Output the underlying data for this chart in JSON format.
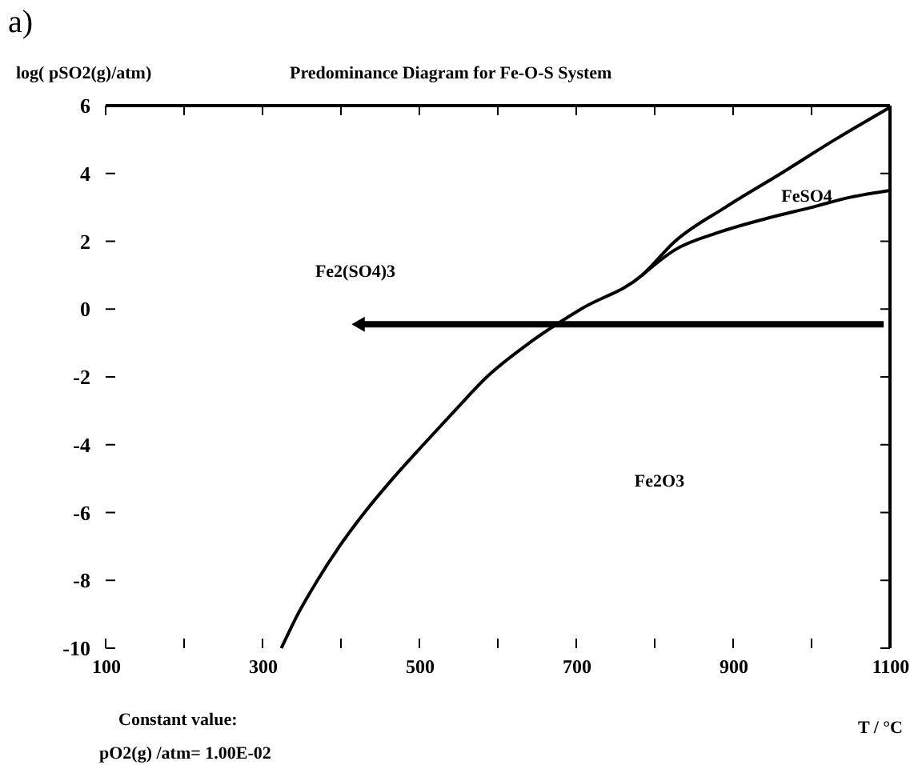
{
  "chart_data": {
    "type": "line",
    "title": "Predominance Diagram for Fe-O-S System",
    "xlabel": "T / °C",
    "ylabel": "log( pSO2(g)/atm)",
    "xlim": [
      100,
      1100
    ],
    "ylim": [
      -10,
      6
    ],
    "xticks": [
      100,
      {
        "value": 200,
        "label": null
      },
      300,
      {
        "value": 400,
        "label": null
      },
      500,
      {
        "value": 600,
        "label": null
      },
      700,
      {
        "value": 800,
        "label": null
      },
      900,
      {
        "value": 1000,
        "label": null
      },
      1100
    ],
    "yticks": [
      -10,
      -8,
      -6,
      -4,
      -2,
      0,
      2,
      4,
      6
    ],
    "grid": false,
    "series": [
      {
        "color": "#000000",
        "x": [
          324,
          345,
          370,
          398,
          430,
          466,
          505,
          545,
          586,
          640,
          706,
          784,
          826,
          890,
          961,
          1030,
          1100
        ],
        "values": [
          -10,
          -9,
          -8,
          -7,
          -6,
          -5,
          -4,
          -3,
          -2,
          -1,
          0,
          1,
          2,
          3,
          4,
          5,
          5.95
        ]
      },
      {
        "color": "#000000",
        "x": [
          784,
          826,
          880,
          939,
          1000,
          1050,
          1100
        ],
        "values": [
          1,
          1.75,
          2.25,
          2.65,
          3.0,
          3.3,
          3.5
        ]
      },
      {
        "color": "#000000",
        "marker": "triangle",
        "x": [
          422,
          1092
        ],
        "values": [
          -0.45,
          -0.45
        ]
      }
    ],
    "annotations": [
      "a)",
      "Constant value:",
      "pO2(g) /atm= 1.00E-02",
      "Fe2(SO4)3",
      "FeSO4",
      "Fe2O3"
    ]
  }
}
